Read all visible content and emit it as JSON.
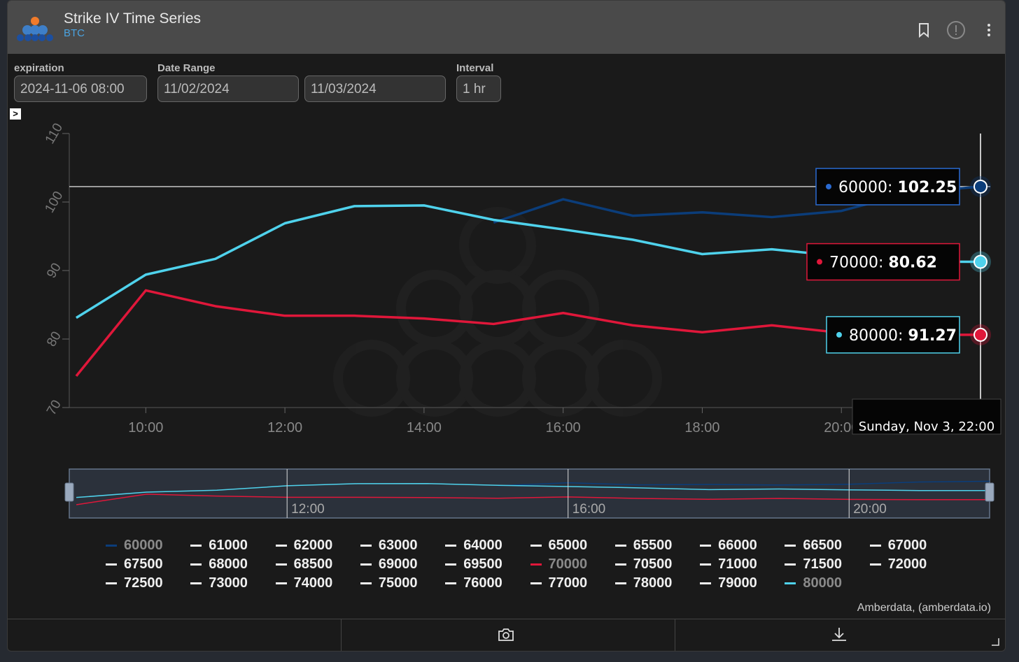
{
  "header": {
    "title": "Strike IV Time Series",
    "subtitle": "BTC"
  },
  "controls": {
    "expiration_label": "expiration",
    "expiration_value": "2024-11-06 08:00",
    "date_range_label": "Date Range",
    "date_start": "11/02/2024",
    "date_end": "11/03/2024",
    "interval_label": "Interval",
    "interval_value": "1 hr"
  },
  "expander": ">",
  "tooltip": {
    "series": [
      {
        "name": "60000",
        "value": "102.25",
        "color": "#0b3d7a"
      },
      {
        "name": "80000",
        "value": "91.27",
        "color": "#4fd2ec"
      },
      {
        "name": "70000",
        "value": "80.62",
        "color": "#e0173a"
      }
    ],
    "date": "Sunday, Nov 3, 22:00"
  },
  "navigator_labels": [
    "12:00",
    "16:00",
    "20:00"
  ],
  "legend": [
    "60000",
    "61000",
    "62000",
    "63000",
    "64000",
    "65000",
    "65500",
    "66000",
    "66500",
    "67000",
    "67500",
    "68000",
    "68500",
    "69000",
    "69500",
    "70000",
    "70500",
    "71000",
    "71500",
    "72000",
    "72500",
    "73000",
    "74000",
    "75000",
    "76000",
    "77000",
    "78000",
    "79000",
    "80000"
  ],
  "legend_active": {
    "60000": "#0b3d7a",
    "70000": "#e0173a",
    "80000": "#4fd2ec"
  },
  "credit": "Amberdata, (amberdata.io)",
  "icons": {
    "bookmark": "bookmark-icon",
    "info": "info-icon",
    "menu": "more-vertical-icon",
    "camera": "camera-icon",
    "download": "download-icon"
  },
  "chart_data": {
    "type": "line",
    "title": "",
    "xlabel": "",
    "ylabel": "",
    "ylim": [
      70,
      110
    ],
    "yticks": [
      70,
      80,
      90,
      100,
      110
    ],
    "xlim_hours": [
      8.9,
      22.0
    ],
    "xticks": [
      "10:00",
      "12:00",
      "14:00",
      "16:00",
      "18:00",
      "20:00"
    ],
    "crosshair": "22:00",
    "series": [
      {
        "name": "60000",
        "color": "#0b3d7a",
        "x": [
          "15:00",
          "16:00",
          "17:00",
          "18:00",
          "19:00",
          "20:00",
          "21:00",
          "22:00"
        ],
        "values": [
          97.0,
          100.4,
          98.0,
          98.5,
          97.8,
          98.7,
          101.4,
          102.25
        ]
      },
      {
        "name": "70000",
        "color": "#e0173a",
        "x": [
          "09:00",
          "10:00",
          "11:00",
          "12:00",
          "13:00",
          "14:00",
          "15:00",
          "16:00",
          "17:00",
          "18:00",
          "19:00",
          "20:00",
          "21:00",
          "22:00"
        ],
        "values": [
          74.6,
          87.1,
          84.8,
          83.4,
          83.4,
          83.0,
          82.2,
          83.8,
          82.0,
          81.0,
          82.0,
          80.9,
          80.6,
          80.62
        ]
      },
      {
        "name": "80000",
        "color": "#4fd2ec",
        "x": [
          "09:00",
          "10:00",
          "11:00",
          "12:00",
          "13:00",
          "14:00",
          "15:00",
          "16:00",
          "17:00",
          "18:00",
          "19:00",
          "20:00",
          "21:00",
          "22:00"
        ],
        "values": [
          83.1,
          89.4,
          91.7,
          96.9,
          99.4,
          99.5,
          97.4,
          96.0,
          94.5,
          92.4,
          93.1,
          92.1,
          91.3,
          91.27
        ]
      }
    ]
  }
}
